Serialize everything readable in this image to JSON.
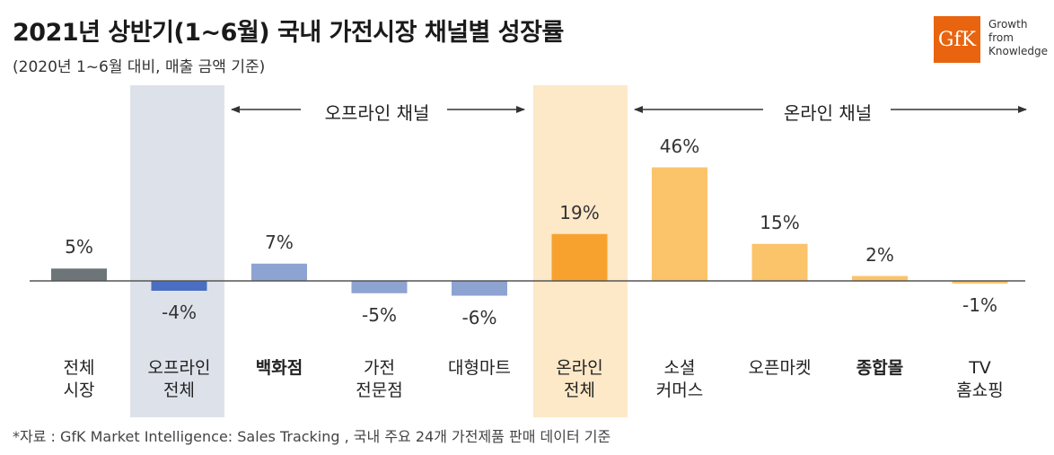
{
  "header": {
    "title": "2021년 상반기(1~6월) 국내 가전시장 채널별 성장률",
    "subtitle": "(2020년 1~6월 대비, 매출 금액 기준)"
  },
  "logo": {
    "mark": "GfK",
    "lines": [
      "Growth",
      "from",
      "Knowledge"
    ],
    "color": "#e8640f"
  },
  "channels": {
    "offline_label": "오프라인 채널",
    "online_label": "온라인 채널"
  },
  "chart_data": {
    "type": "bar",
    "categories": [
      [
        "전체",
        "시장"
      ],
      [
        "오프라인",
        "전체"
      ],
      [
        "백화점"
      ],
      [
        "가전",
        "전문점"
      ],
      [
        "대형마트"
      ],
      [
        "온라인",
        "전체"
      ],
      [
        "소셜",
        "커머스"
      ],
      [
        "오픈마켓"
      ],
      [
        "종합몰"
      ],
      [
        "TV",
        "홈쇼핑"
      ]
    ],
    "values": [
      5,
      -4,
      7,
      -5,
      -6,
      19,
      46,
      15,
      2,
      -1
    ],
    "value_labels": [
      "5%",
      "-4%",
      "7%",
      "-5%",
      "-6%",
      "19%",
      "46%",
      "15%",
      "2%",
      "-1%"
    ],
    "bold_categories": [
      2,
      8
    ],
    "bar_colors": [
      "#6d7579",
      "#4a6fc2",
      "#8da3d1",
      "#8da3d1",
      "#8da3d1",
      "#f7a22e",
      "#fbc36a",
      "#fbc36a",
      "#fbc36a",
      "#fbc36a"
    ],
    "highlighted": [
      1,
      5
    ],
    "ylim": [
      -10,
      50
    ],
    "grid": false,
    "xlabel": "",
    "ylabel": ""
  },
  "footnote": "*자료 : GfK Market Intelligence: Sales Tracking , 국내 주요 24개 가전제품 판매 데이터 기준"
}
